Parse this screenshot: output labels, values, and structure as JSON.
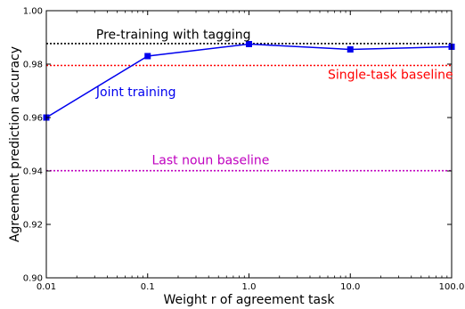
{
  "chart_data": {
    "type": "line",
    "xlabel": "Weight r of agreement task",
    "ylabel": "Agreement prediction accuracy",
    "xscale": "log",
    "xlim": [
      0.01,
      100.0
    ],
    "ylim": [
      0.9,
      1.0
    ],
    "x_ticks": [
      0.01,
      0.1,
      1.0,
      10.0,
      100.0
    ],
    "x_tick_labels": [
      "0.01",
      "0.1",
      "1.0",
      "10.0",
      "100.0"
    ],
    "y_ticks": [
      0.9,
      0.92,
      0.94,
      0.96,
      0.98,
      1.0
    ],
    "y_tick_labels": [
      "0.90",
      "0.92",
      "0.94",
      "0.96",
      "0.98",
      "1.00"
    ],
    "grid": false,
    "series": [
      {
        "name": "Joint training",
        "style": "solid",
        "marker": "square",
        "color": "#0000ee",
        "x": [
          0.01,
          0.1,
          1.0,
          10.0,
          100.0
        ],
        "y": [
          0.96,
          0.983,
          0.9875,
          0.9855,
          0.9865
        ]
      }
    ],
    "reference_lines": [
      {
        "name": "Pre-training with tagging",
        "y": 0.9877,
        "color": "#000000",
        "style": "dotted"
      },
      {
        "name": "Single-task baseline",
        "y": 0.9795,
        "color": "#ff0000",
        "style": "dotted"
      },
      {
        "name": "Last noun baseline",
        "y": 0.9401,
        "color": "#bf00bf",
        "style": "dotted"
      }
    ],
    "annotations": [
      {
        "text": "Pre-training with tagging",
        "color": "#000000",
        "x": 0.031,
        "y": 0.9895
      },
      {
        "text": "Single-task baseline",
        "color": "#ff0000",
        "x": 6.0,
        "y": 0.9745
      },
      {
        "text": "Joint training",
        "color": "#0000ee",
        "x": 0.031,
        "y": 0.968
      },
      {
        "text": "Last noun baseline",
        "color": "#bf00bf",
        "x": 0.11,
        "y": 0.9425
      }
    ]
  }
}
